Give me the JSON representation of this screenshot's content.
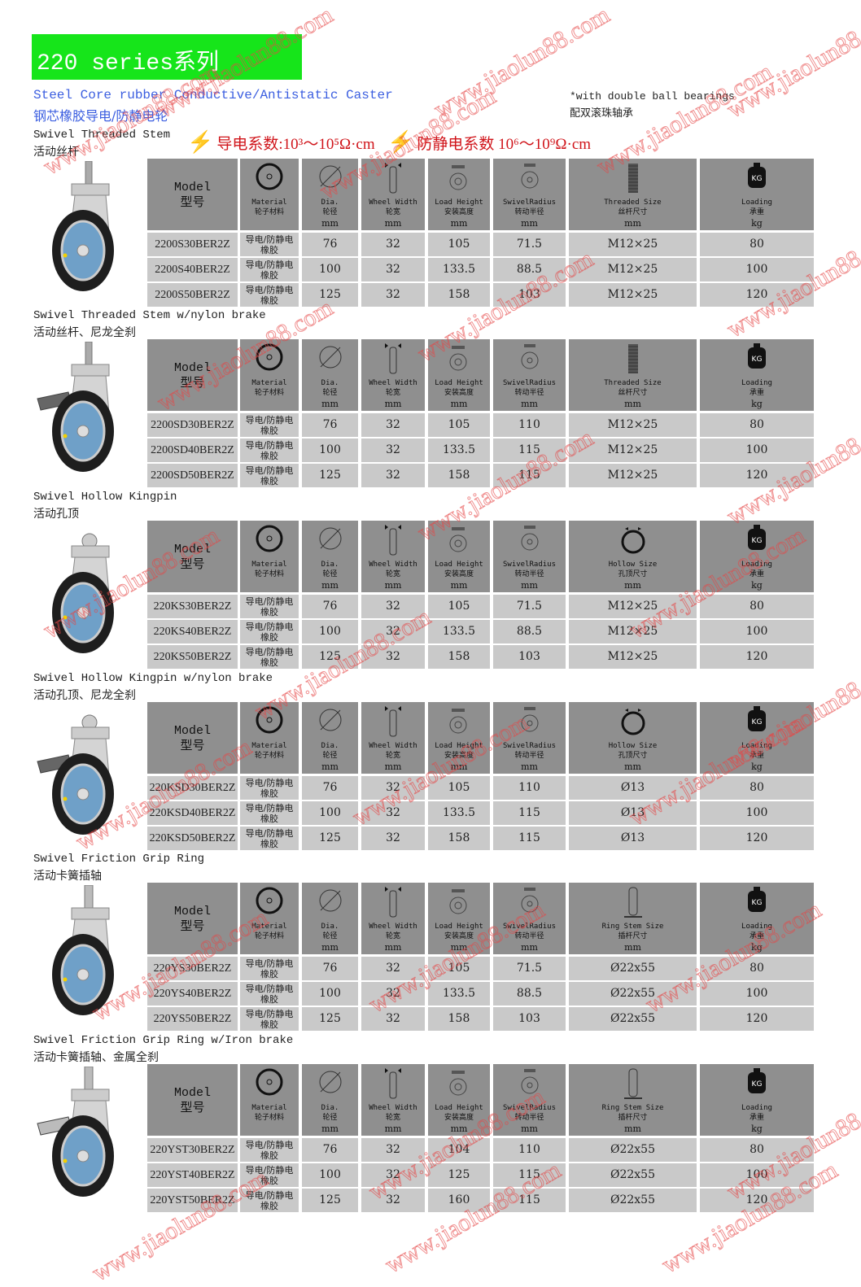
{
  "header": {
    "title": "220 series系列",
    "subtitle_en": "Steel Core rubber Conductive/Antistatic Caster",
    "subtitle_cn": "钢芯橡胶导电/防静电轮",
    "note_en": "*with double ball bearings",
    "note_cn": "配双滚珠轴承",
    "conductive": "导电系数:10³～10⁵Ω·cm",
    "antistatic": "防静电系数 10⁶～10⁹Ω·cm"
  },
  "watermark": "www.jiaolun88.com",
  "colors": {
    "banner": "#16e51a",
    "subtitle": "#3b5ee0",
    "coefficient": "#d0141a",
    "header_bg": "#8f8f8f",
    "row_bg": "#c9c9c9"
  },
  "columns": {
    "model": [
      "Model",
      "型号"
    ],
    "material": [
      "Material",
      "轮子材料"
    ],
    "dia": [
      "Dia.",
      "轮径",
      "mm"
    ],
    "width": [
      "Wheel Width",
      "轮宽",
      "mm"
    ],
    "load": [
      "Load Height",
      "安装高度",
      "mm"
    ],
    "swivel": [
      "SwivelRadius",
      "转动半径",
      "mm"
    ],
    "loading": [
      "Loading",
      "承重",
      "kg"
    ]
  },
  "material_value": "导电/防静电橡胶",
  "sections": [
    {
      "title_en": "Swivel Threaded Stem",
      "title_cn": "活动丝杆",
      "size_col": [
        "Threaded Size",
        "丝杆尺寸",
        "mm"
      ],
      "size_icon": "thread",
      "brake": "none",
      "rows": [
        [
          "2200S30BER2Z",
          "76",
          "32",
          "105",
          "71.5",
          "M12×25",
          "80"
        ],
        [
          "2200S40BER2Z",
          "100",
          "32",
          "133.5",
          "88.5",
          "M12×25",
          "100"
        ],
        [
          "2200S50BER2Z",
          "125",
          "32",
          "158",
          "103",
          "M12×25",
          "120"
        ]
      ]
    },
    {
      "title_en": "Swivel Threaded Stem w/nylon brake",
      "title_cn": "活动丝杆、尼龙全刹",
      "size_col": [
        "Threaded Size",
        "丝杆尺寸",
        "mm"
      ],
      "size_icon": "thread",
      "brake": "nylon",
      "rows": [
        [
          "2200SD30BER2Z",
          "76",
          "32",
          "105",
          "110",
          "M12×25",
          "80"
        ],
        [
          "2200SD40BER2Z",
          "100",
          "32",
          "133.5",
          "115",
          "M12×25",
          "100"
        ],
        [
          "2200SD50BER2Z",
          "125",
          "32",
          "158",
          "115",
          "M12×25",
          "120"
        ]
      ]
    },
    {
      "title_en": "Swivel Hollow Kingpin",
      "title_cn": "活动孔顶",
      "size_col": [
        "Hollow Size",
        "孔顶尺寸",
        "mm"
      ],
      "size_icon": "ring",
      "brake": "none",
      "rows": [
        [
          "220KS30BER2Z",
          "76",
          "32",
          "105",
          "71.5",
          "M12×25",
          "80"
        ],
        [
          "220KS40BER2Z",
          "100",
          "32",
          "133.5",
          "88.5",
          "M12×25",
          "100"
        ],
        [
          "220KS50BER2Z",
          "125",
          "32",
          "158",
          "103",
          "M12×25",
          "120"
        ]
      ]
    },
    {
      "title_en": "Swivel Hollow Kingpin w/nylon brake",
      "title_cn": "活动孔顶、尼龙全刹",
      "size_col": [
        "Hollow Size",
        "孔顶尺寸",
        "mm"
      ],
      "size_icon": "ring",
      "brake": "nylon",
      "rows": [
        [
          "220KSD30BER2Z",
          "76",
          "32",
          "105",
          "110",
          "Ø13",
          "80"
        ],
        [
          "220KSD40BER2Z",
          "100",
          "32",
          "133.5",
          "115",
          "Ø13",
          "100"
        ],
        [
          "220KSD50BER2Z",
          "125",
          "32",
          "158",
          "115",
          "Ø13",
          "120"
        ]
      ]
    },
    {
      "title_en": "Swivel Friction Grip Ring",
      "title_cn": "活动卡簧插轴",
      "size_col": [
        "Ring Stem Size",
        "插杆尺寸",
        "mm"
      ],
      "size_icon": "stem",
      "brake": "none",
      "rows": [
        [
          "220YS30BER2Z",
          "76",
          "32",
          "105",
          "71.5",
          "Ø22x55",
          "80"
        ],
        [
          "220YS40BER2Z",
          "100",
          "32",
          "133.5",
          "88.5",
          "Ø22x55",
          "100"
        ],
        [
          "220YS50BER2Z",
          "125",
          "32",
          "158",
          "103",
          "Ø22x55",
          "120"
        ]
      ]
    },
    {
      "title_en": "Swivel Friction Grip Ring w/Iron brake",
      "title_cn": "活动卡簧插轴、金属全刹",
      "size_col": [
        "Ring Stem Size",
        "插杆尺寸",
        "mm"
      ],
      "size_icon": "stem",
      "brake": "iron",
      "rows": [
        [
          "220YST30BER2Z",
          "76",
          "32",
          "104",
          "110",
          "Ø22x55",
          "80"
        ],
        [
          "220YST40BER2Z",
          "100",
          "32",
          "125",
          "115",
          "Ø22x55",
          "100"
        ],
        [
          "220YST50BER2Z",
          "125",
          "32",
          "160",
          "115",
          "Ø22x55",
          "120"
        ]
      ]
    }
  ]
}
